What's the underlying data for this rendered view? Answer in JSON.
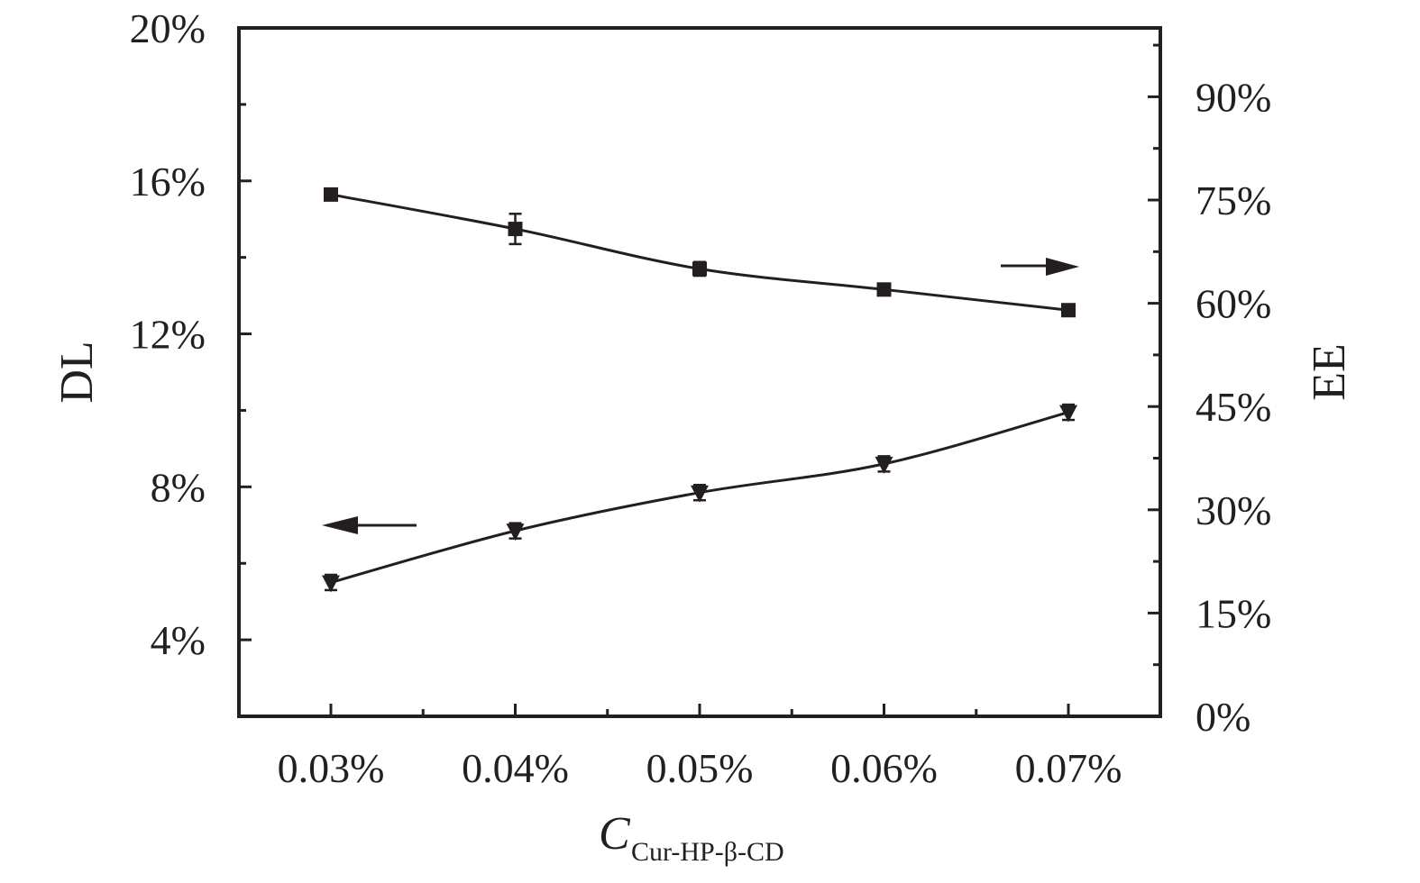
{
  "chart_data": {
    "type": "line",
    "xlabel": "C",
    "xlabel_subscript": "Cur-HP-β-CD",
    "categories": [
      "0.03%",
      "0.04%",
      "0.05%",
      "0.06%",
      "0.07%"
    ],
    "y_left": {
      "label": "DL",
      "ylim": [
        2,
        20
      ],
      "ticks": [
        4,
        8,
        12,
        16,
        20
      ],
      "tick_labels": [
        "4%",
        "8%",
        "12%",
        "16%",
        "20%"
      ]
    },
    "y_right": {
      "label": "EE",
      "ylim": [
        0,
        100
      ],
      "ticks": [
        0,
        15,
        30,
        45,
        60,
        75,
        90
      ],
      "tick_labels": [
        "0%",
        "15%",
        "30%",
        "45%",
        "60%",
        "75%",
        "90%"
      ]
    },
    "series": [
      {
        "axis": "right",
        "marker": "square",
        "values": [
          75.8,
          70.8,
          65.0,
          62.0,
          59.0
        ],
        "errors": [
          0.5,
          2.2,
          1.0,
          0.8,
          0.8
        ]
      },
      {
        "axis": "left",
        "marker": "triangle-down",
        "values": [
          5.5,
          6.85,
          7.85,
          8.6,
          9.95
        ],
        "errors": [
          0.2,
          0.2,
          0.2,
          0.2,
          0.2
        ]
      }
    ],
    "grid": false,
    "legend": "none",
    "annotations": [
      "arrow pointing right near EE curve",
      "arrow pointing left near DL curve"
    ],
    "colors": {
      "line": "#231f20",
      "marker": "#231f20"
    }
  }
}
